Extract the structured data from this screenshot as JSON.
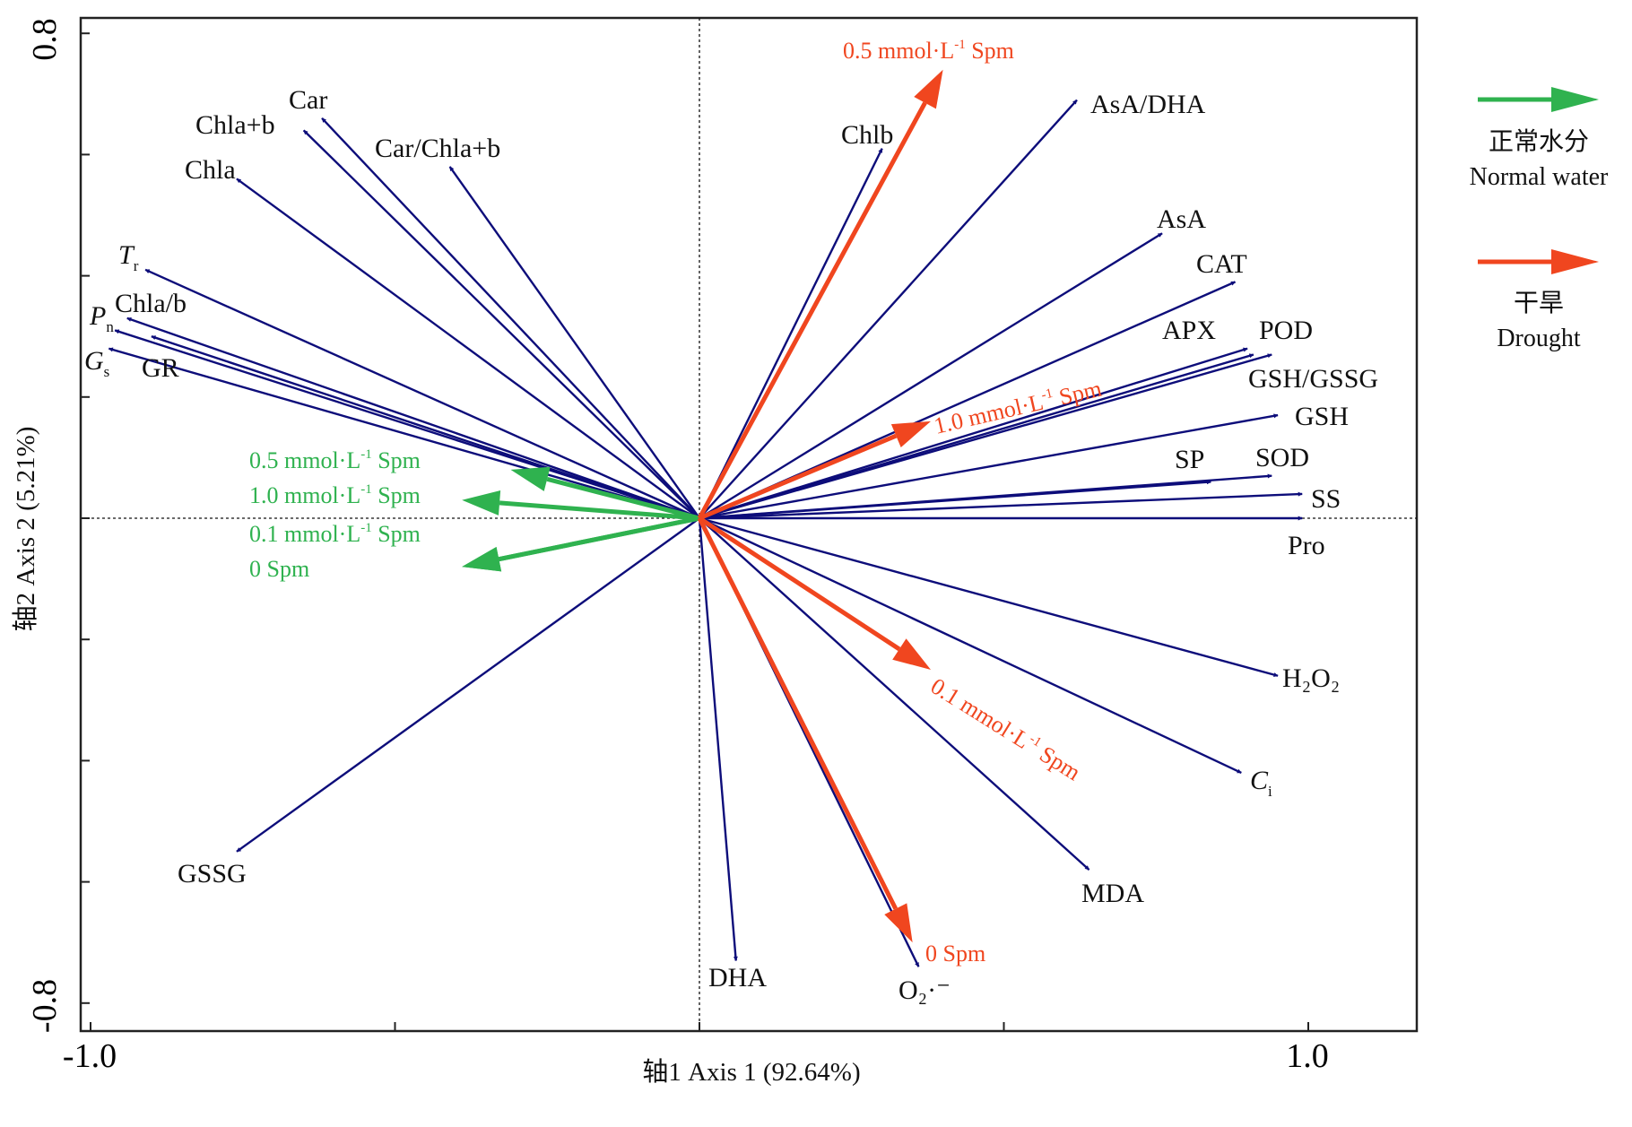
{
  "chart_data": {
    "type": "biplot",
    "xlabel": "轴1 Axis 1 (92.64%)",
    "ylabel": "轴2 Axis 2 (5.21%)",
    "xlim": [
      -1.05,
      1.18
    ],
    "ylim": [
      -0.82,
      0.83
    ],
    "x_tick_labels": [
      {
        "value": -1.0,
        "label": "-1.0"
      },
      {
        "value": 1.0,
        "label": "1.0"
      }
    ],
    "y_tick_labels": [
      {
        "value": 0.8,
        "label": "0.8"
      },
      {
        "value": -0.8,
        "label": "-0.8"
      }
    ],
    "x_ticks": [
      -1.0,
      -0.5,
      0.0,
      0.5,
      1.0
    ],
    "y_ticks": [
      -0.8,
      -0.6,
      -0.4,
      -0.2,
      0.0,
      0.2,
      0.4,
      0.6,
      0.8
    ],
    "colors": {
      "variables": "#0d0d7a",
      "normal_water": "#2fb24f",
      "drought": "#f0461f",
      "axes": "#222222"
    },
    "variables": [
      {
        "name": "Car",
        "x": -0.62,
        "y": 0.66
      },
      {
        "name": "Chla+b",
        "x": -0.65,
        "y": 0.64
      },
      {
        "name": "Car/Chla+b",
        "x": -0.41,
        "y": 0.58
      },
      {
        "name": "Chla",
        "x": -0.76,
        "y": 0.56
      },
      {
        "name": "Tr",
        "x": -0.91,
        "y": 0.41
      },
      {
        "name": "Chla/b",
        "x": -0.94,
        "y": 0.33
      },
      {
        "name": "Pn",
        "x": -0.96,
        "y": 0.31
      },
      {
        "name": "GR",
        "x": -0.9,
        "y": 0.3
      },
      {
        "name": "Gs",
        "x": -0.97,
        "y": 0.28
      },
      {
        "name": "GSSG",
        "x": -0.76,
        "y": -0.55
      },
      {
        "name": "Chlb",
        "x": 0.3,
        "y": 0.61
      },
      {
        "name": "AsA/DHA",
        "x": 0.62,
        "y": 0.69
      },
      {
        "name": "AsA",
        "x": 0.76,
        "y": 0.47
      },
      {
        "name": "CAT",
        "x": 0.88,
        "y": 0.39
      },
      {
        "name": "APX",
        "x": 0.9,
        "y": 0.28
      },
      {
        "name": "POD",
        "x": 0.94,
        "y": 0.27
      },
      {
        "name": "GSH/GSSG",
        "x": 0.91,
        "y": 0.27
      },
      {
        "name": "GSH",
        "x": 0.95,
        "y": 0.17
      },
      {
        "name": "SP",
        "x": 0.84,
        "y": 0.06
      },
      {
        "name": "SOD",
        "x": 0.94,
        "y": 0.07
      },
      {
        "name": "SS",
        "x": 0.99,
        "y": 0.04
      },
      {
        "name": "Pro",
        "x": 0.99,
        "y": 0.0
      },
      {
        "name": "H2O2",
        "x": 0.95,
        "y": -0.26
      },
      {
        "name": "Ci",
        "x": 0.89,
        "y": -0.42
      },
      {
        "name": "MDA",
        "x": 0.64,
        "y": -0.58
      },
      {
        "name": "DHA",
        "x": 0.06,
        "y": -0.73
      },
      {
        "name": "O2·-",
        "x": 0.36,
        "y": -0.74
      }
    ],
    "series": [
      {
        "name": "正常水分 Normal water",
        "points": [
          {
            "label": "0.5 mmol·L-1 Spm",
            "x": -0.31,
            "y": 0.08
          },
          {
            "label": "1.0 mmol·L-1 Spm",
            "x": -0.39,
            "y": 0.03
          },
          {
            "label": "0.1 mmol·L-1 Spm",
            "x": -0.39,
            "y": -0.08
          },
          {
            "label": "0 Spm",
            "x": -0.39,
            "y": -0.08
          }
        ]
      },
      {
        "name": "干旱 Drought",
        "points": [
          {
            "label": "0.5 mmol·L-1 Spm",
            "x": 0.4,
            "y": 0.74
          },
          {
            "label": "1.0 mmol·L-1 Spm",
            "x": 0.38,
            "y": 0.16
          },
          {
            "label": "0.1 mmol·L-1 Spm",
            "x": 0.38,
            "y": -0.25
          },
          {
            "label": "0 Spm",
            "x": 0.35,
            "y": -0.7
          }
        ]
      }
    ]
  },
  "text": {
    "var_labels": {
      "Car": "Car",
      "Chla_b_sum": "Chla+b",
      "Car_ratio": "Car/Chla+b",
      "Chla": "Chla",
      "Tr_main": "T",
      "Tr_sub": "r",
      "Chla_b_ratio": "Chla/b",
      "Pn_main": "P",
      "Pn_sub": "n",
      "GR": "GR",
      "Gs_main": "G",
      "Gs_sub": "s",
      "GSSG": "GSSG",
      "Chlb": "Chlb",
      "AsA_DHA": "AsA/DHA",
      "AsA": "AsA",
      "CAT": "CAT",
      "APX": "APX",
      "POD": "POD",
      "GSH_GSSG": "GSH/GSSG",
      "GSH": "GSH",
      "SP": "SP",
      "SOD": "SOD",
      "SS": "SS",
      "Pro": "Pro",
      "H2O2": "H₂O₂",
      "Ci_main": "C",
      "Ci_sub": "i",
      "MDA": "MDA",
      "DHA": "DHA",
      "O2": "O₂·⁻"
    },
    "treatment": {
      "mmol_prefix_05": "0.5 mmol·L",
      "mmol_prefix_10": "1.0 mmol·L",
      "mmol_prefix_01": "0.1 mmol·L",
      "mmol_prefix_10_sp": "1.0  mmol·L",
      "exp": "-1",
      "suffix": " Spm",
      "zero": "0 Spm"
    },
    "legend": {
      "normal_cn": "正常水分",
      "normal_en": "Normal water",
      "drought_cn": "干旱",
      "drought_en": "Drought"
    }
  }
}
